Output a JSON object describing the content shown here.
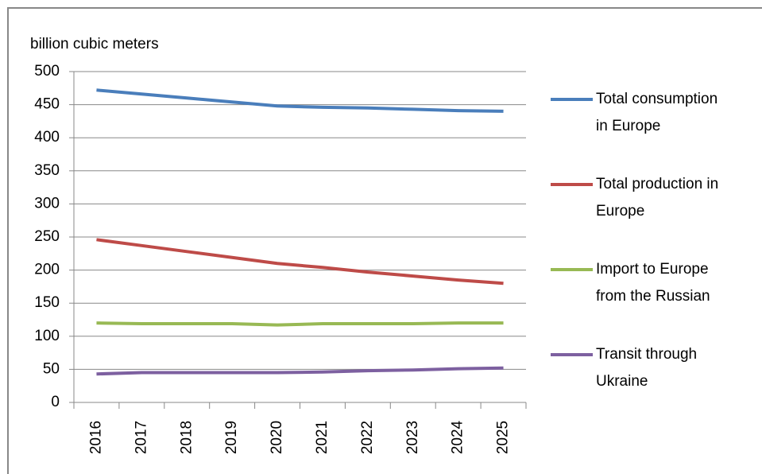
{
  "chart_data": {
    "type": "line",
    "y_label": "billion cubic meters",
    "categories": [
      "2016",
      "2017",
      "2018",
      "2019",
      "2020",
      "2021",
      "2022",
      "2023",
      "2024",
      "2025"
    ],
    "series": [
      {
        "name": "Total consumption in Europe",
        "color": "#4a7ebb",
        "values": [
          472,
          466,
          460,
          454,
          448,
          446,
          445,
          443,
          441,
          440
        ]
      },
      {
        "name": "Total production in Europe",
        "color": "#be4b48",
        "values": [
          246,
          237,
          228,
          219,
          210,
          204,
          197,
          191,
          185,
          180
        ]
      },
      {
        "name": "Import to Europe from the Russian",
        "color": "#98b954",
        "values": [
          120,
          119,
          119,
          119,
          117,
          119,
          119,
          119,
          120,
          120
        ]
      },
      {
        "name": "Transit through Ukraine",
        "color": "#7d60a0",
        "values": [
          43,
          45,
          45,
          45,
          45,
          46,
          48,
          49,
          51,
          52
        ]
      }
    ],
    "ylim": [
      0,
      500
    ],
    "yticks": [
      0,
      50,
      100,
      150,
      200,
      250,
      300,
      350,
      400,
      450,
      500
    ],
    "grid": true
  }
}
